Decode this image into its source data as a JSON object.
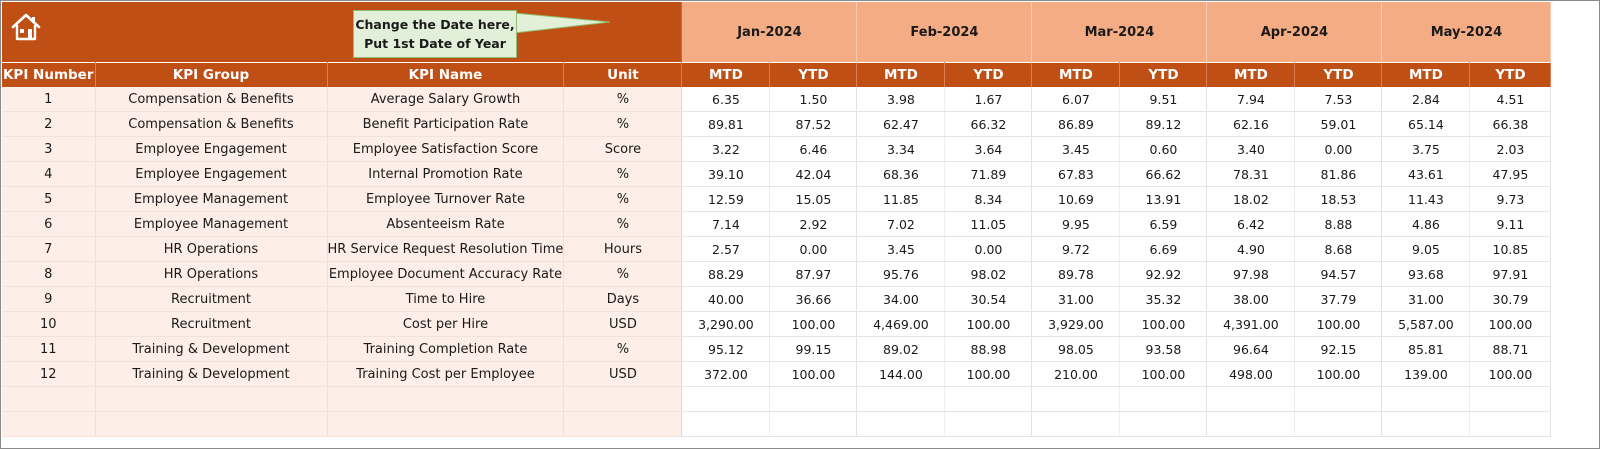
{
  "header": {
    "callout_line1": "Change the Date here,",
    "callout_line2": "Put 1st Date of Year",
    "home_icon": "home-icon",
    "months": [
      "Jan-2024",
      "Feb-2024",
      "Mar-2024",
      "Apr-2024",
      "May-2024"
    ]
  },
  "columns": {
    "kpi_number": "KPI Number",
    "kpi_group": "KPI Group",
    "kpi_name": "KPI Name",
    "unit": "Unit",
    "mtd": "MTD",
    "ytd": "YTD"
  },
  "rows": [
    {
      "num": "1",
      "group": "Compensation & Benefits",
      "name": "Average Salary Growth",
      "unit": "%",
      "vals": [
        "6.35",
        "1.50",
        "3.98",
        "1.67",
        "6.07",
        "9.51",
        "7.94",
        "7.53",
        "2.84",
        "4.51"
      ]
    },
    {
      "num": "2",
      "group": "Compensation & Benefits",
      "name": "Benefit Participation Rate",
      "unit": "%",
      "vals": [
        "89.81",
        "87.52",
        "62.47",
        "66.32",
        "86.89",
        "89.12",
        "62.16",
        "59.01",
        "65.14",
        "66.38"
      ]
    },
    {
      "num": "3",
      "group": "Employee Engagement",
      "name": "Employee Satisfaction Score",
      "unit": "Score",
      "vals": [
        "3.22",
        "6.46",
        "3.34",
        "3.64",
        "3.45",
        "0.60",
        "3.40",
        "0.00",
        "3.75",
        "2.03"
      ]
    },
    {
      "num": "4",
      "group": "Employee Engagement",
      "name": "Internal Promotion Rate",
      "unit": "%",
      "vals": [
        "39.10",
        "42.04",
        "68.36",
        "71.89",
        "67.83",
        "66.62",
        "78.31",
        "81.86",
        "43.61",
        "47.95"
      ]
    },
    {
      "num": "5",
      "group": "Employee Management",
      "name": "Employee Turnover Rate",
      "unit": "%",
      "vals": [
        "12.59",
        "15.05",
        "11.85",
        "8.34",
        "10.69",
        "13.91",
        "18.02",
        "18.53",
        "11.43",
        "9.73"
      ]
    },
    {
      "num": "6",
      "group": "Employee Management",
      "name": "Absenteeism Rate",
      "unit": "%",
      "vals": [
        "7.14",
        "2.92",
        "7.02",
        "11.05",
        "9.95",
        "6.59",
        "6.42",
        "8.88",
        "4.86",
        "9.11"
      ]
    },
    {
      "num": "7",
      "group": "HR Operations",
      "name": "HR Service Request Resolution Time",
      "unit": "Hours",
      "vals": [
        "2.57",
        "0.00",
        "3.45",
        "0.00",
        "9.72",
        "6.69",
        "4.90",
        "8.68",
        "9.05",
        "10.85"
      ]
    },
    {
      "num": "8",
      "group": "HR Operations",
      "name": "Employee Document Accuracy Rate",
      "unit": "%",
      "vals": [
        "88.29",
        "87.97",
        "95.76",
        "98.02",
        "89.78",
        "92.92",
        "97.98",
        "94.57",
        "93.68",
        "97.91"
      ]
    },
    {
      "num": "9",
      "group": "Recruitment",
      "name": "Time to Hire",
      "unit": "Days",
      "vals": [
        "40.00",
        "36.66",
        "34.00",
        "30.54",
        "31.00",
        "35.32",
        "38.00",
        "37.79",
        "31.00",
        "30.79"
      ]
    },
    {
      "num": "10",
      "group": "Recruitment",
      "name": "Cost per Hire",
      "unit": "USD",
      "vals": [
        "3,290.00",
        "100.00",
        "4,469.00",
        "100.00",
        "3,929.00",
        "100.00",
        "4,391.00",
        "100.00",
        "5,587.00",
        "100.00"
      ]
    },
    {
      "num": "11",
      "group": "Training & Development",
      "name": "Training Completion Rate",
      "unit": "%",
      "vals": [
        "95.12",
        "99.15",
        "89.02",
        "88.98",
        "98.05",
        "93.58",
        "96.64",
        "92.15",
        "85.81",
        "88.71"
      ]
    },
    {
      "num": "12",
      "group": "Training & Development",
      "name": "Training Cost per Employee",
      "unit": "USD",
      "vals": [
        "372.00",
        "100.00",
        "144.00",
        "100.00",
        "210.00",
        "100.00",
        "498.00",
        "100.00",
        "139.00",
        "100.00"
      ]
    }
  ],
  "colors": {
    "header_dark": "#c04f15",
    "month_band": "#f4ac84",
    "info_fill": "#fdeee7",
    "callout_fill": "#e2f0d9"
  }
}
